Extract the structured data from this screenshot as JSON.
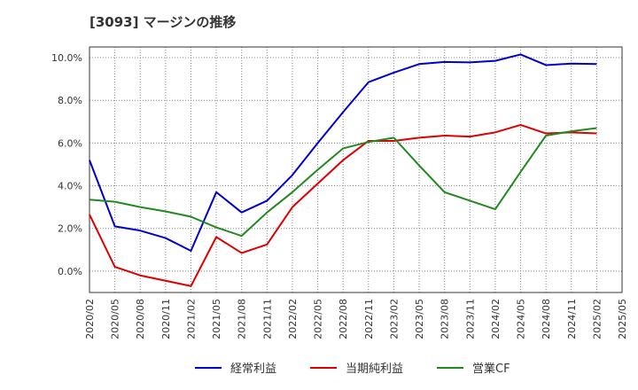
{
  "chart_data": {
    "type": "line",
    "title": "[3093]  マージンの推移",
    "x": [
      "2020/02",
      "2020/05",
      "2020/08",
      "2020/11",
      "2021/02",
      "2021/05",
      "2021/08",
      "2021/11",
      "2022/02",
      "2022/05",
      "2022/08",
      "2022/11",
      "2023/02",
      "2023/05",
      "2023/08",
      "2023/11",
      "2024/02",
      "2024/05",
      "2024/08",
      "2024/11",
      "2025/02"
    ],
    "x_ticks": [
      "2020/02",
      "2020/05",
      "2020/08",
      "2020/11",
      "2021/02",
      "2021/05",
      "2021/08",
      "2021/11",
      "2022/02",
      "2022/05",
      "2022/08",
      "2022/11",
      "2023/02",
      "2023/05",
      "2023/08",
      "2023/11",
      "2024/02",
      "2024/05",
      "2024/08",
      "2024/11",
      "2025/02",
      "2025/05"
    ],
    "y_ticks": [
      "0.0%",
      "2.0%",
      "4.0%",
      "6.0%",
      "8.0%",
      "10.0%"
    ],
    "ylim": [
      -1.0,
      10.5
    ],
    "grid": true,
    "legend": "bottom",
    "series": [
      {
        "name": "経常利益",
        "color": "#0000cc",
        "values": [
          5.2,
          2.1,
          1.9,
          1.55,
          0.95,
          3.7,
          2.75,
          3.3,
          4.5,
          6.0,
          7.45,
          8.85,
          9.3,
          9.7,
          9.8,
          9.78,
          9.85,
          10.15,
          9.65,
          9.72,
          9.7
        ]
      },
      {
        "name": "当期純利益",
        "color": "#dd0000",
        "values": [
          2.65,
          0.2,
          -0.2,
          -0.45,
          -0.7,
          1.6,
          0.85,
          1.25,
          3.0,
          4.1,
          5.2,
          6.1,
          6.1,
          6.25,
          6.35,
          6.3,
          6.5,
          6.85,
          6.45,
          6.5,
          6.45
        ]
      },
      {
        "name": "営業CF",
        "color": "#228822",
        "values": [
          3.35,
          3.25,
          3.0,
          2.8,
          2.55,
          2.05,
          1.65,
          2.75,
          3.7,
          4.75,
          5.75,
          6.05,
          6.25,
          4.95,
          3.7,
          3.3,
          2.9,
          4.65,
          6.35,
          6.55,
          6.7
        ]
      }
    ]
  }
}
